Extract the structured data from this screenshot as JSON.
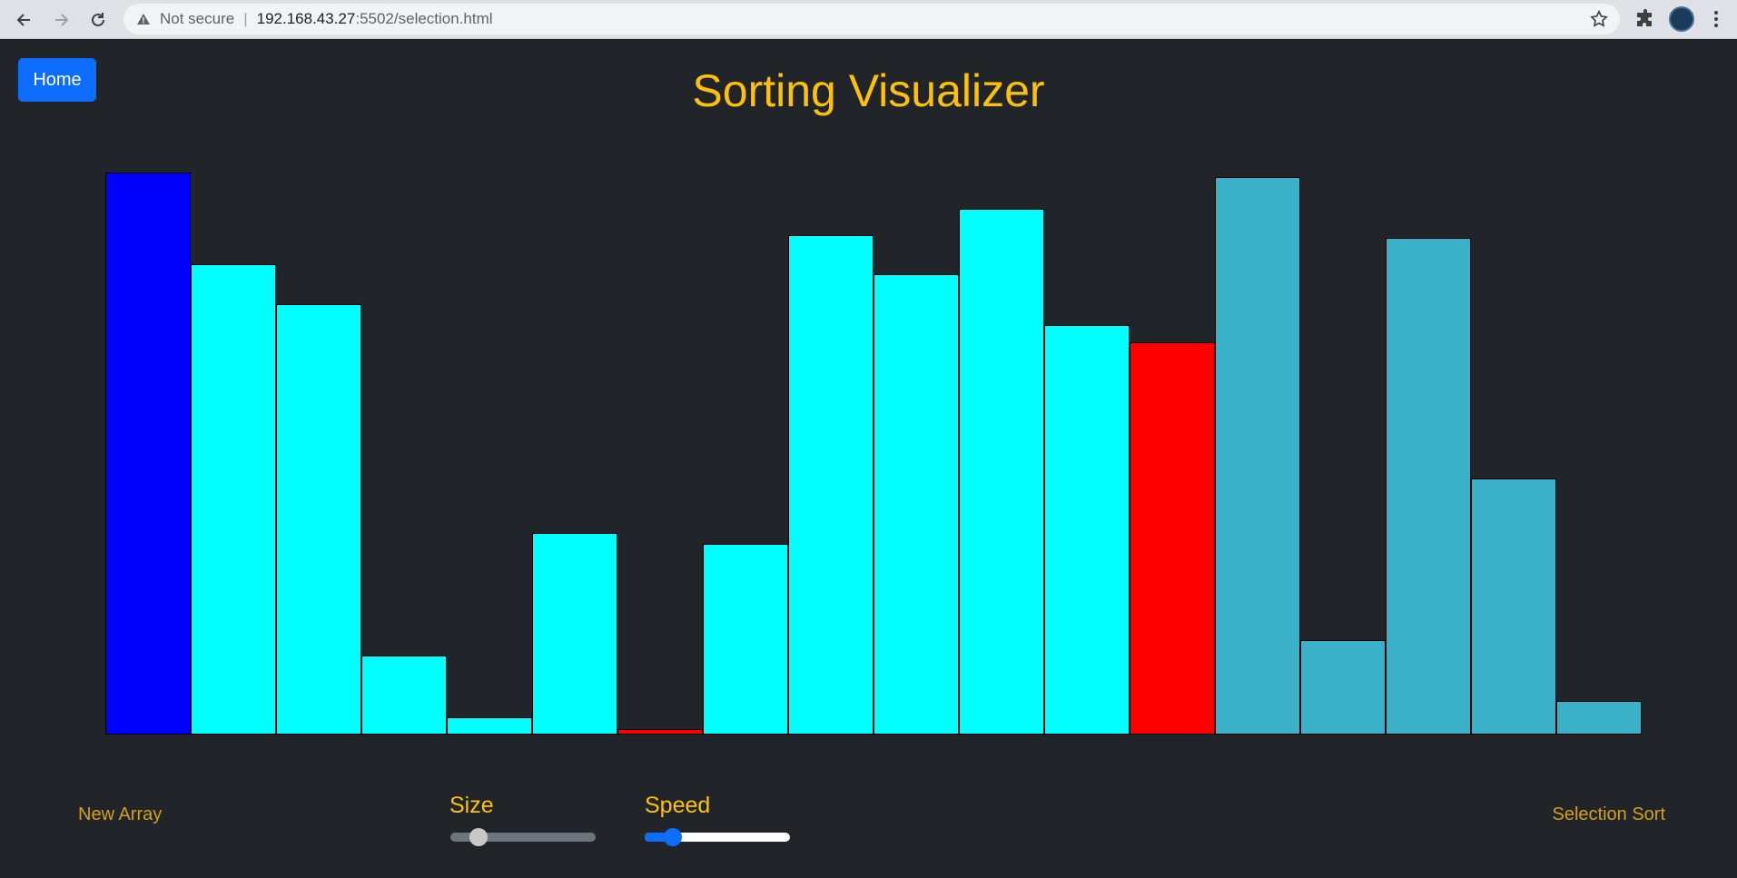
{
  "browser": {
    "security_label": "Not secure",
    "separator": "|",
    "url_host": "192.168.43.27",
    "url_path": ":5502/selection.html"
  },
  "page": {
    "home_button": "Home",
    "title": "Sorting Visualizer",
    "new_array_label": "New Array",
    "size_label": "Size",
    "speed_label": "Speed",
    "algorithm_label": "Selection Sort",
    "size_value": 0.15,
    "speed_value": 0.15
  },
  "bars": {
    "max_value": 100,
    "values": [
      100,
      83.7,
      76.5,
      14.1,
      3.0,
      35.9,
      1.0,
      33.9,
      88.8,
      81.9,
      93.6,
      72.9,
      69.8,
      99.2,
      16.8,
      88.4,
      45.6,
      6.0
    ],
    "colors": [
      "#0000ff",
      "#00ffff",
      "#00ffff",
      "#00ffff",
      "#00ffff",
      "#00ffff",
      "#ff0000",
      "#00ffff",
      "#00ffff",
      "#00ffff",
      "#00ffff",
      "#00ffff",
      "#ff0000",
      "#3bb0c9",
      "#3bb0c9",
      "#3bb0c9",
      "#3bb0c9",
      "#3bb0c9"
    ]
  }
}
